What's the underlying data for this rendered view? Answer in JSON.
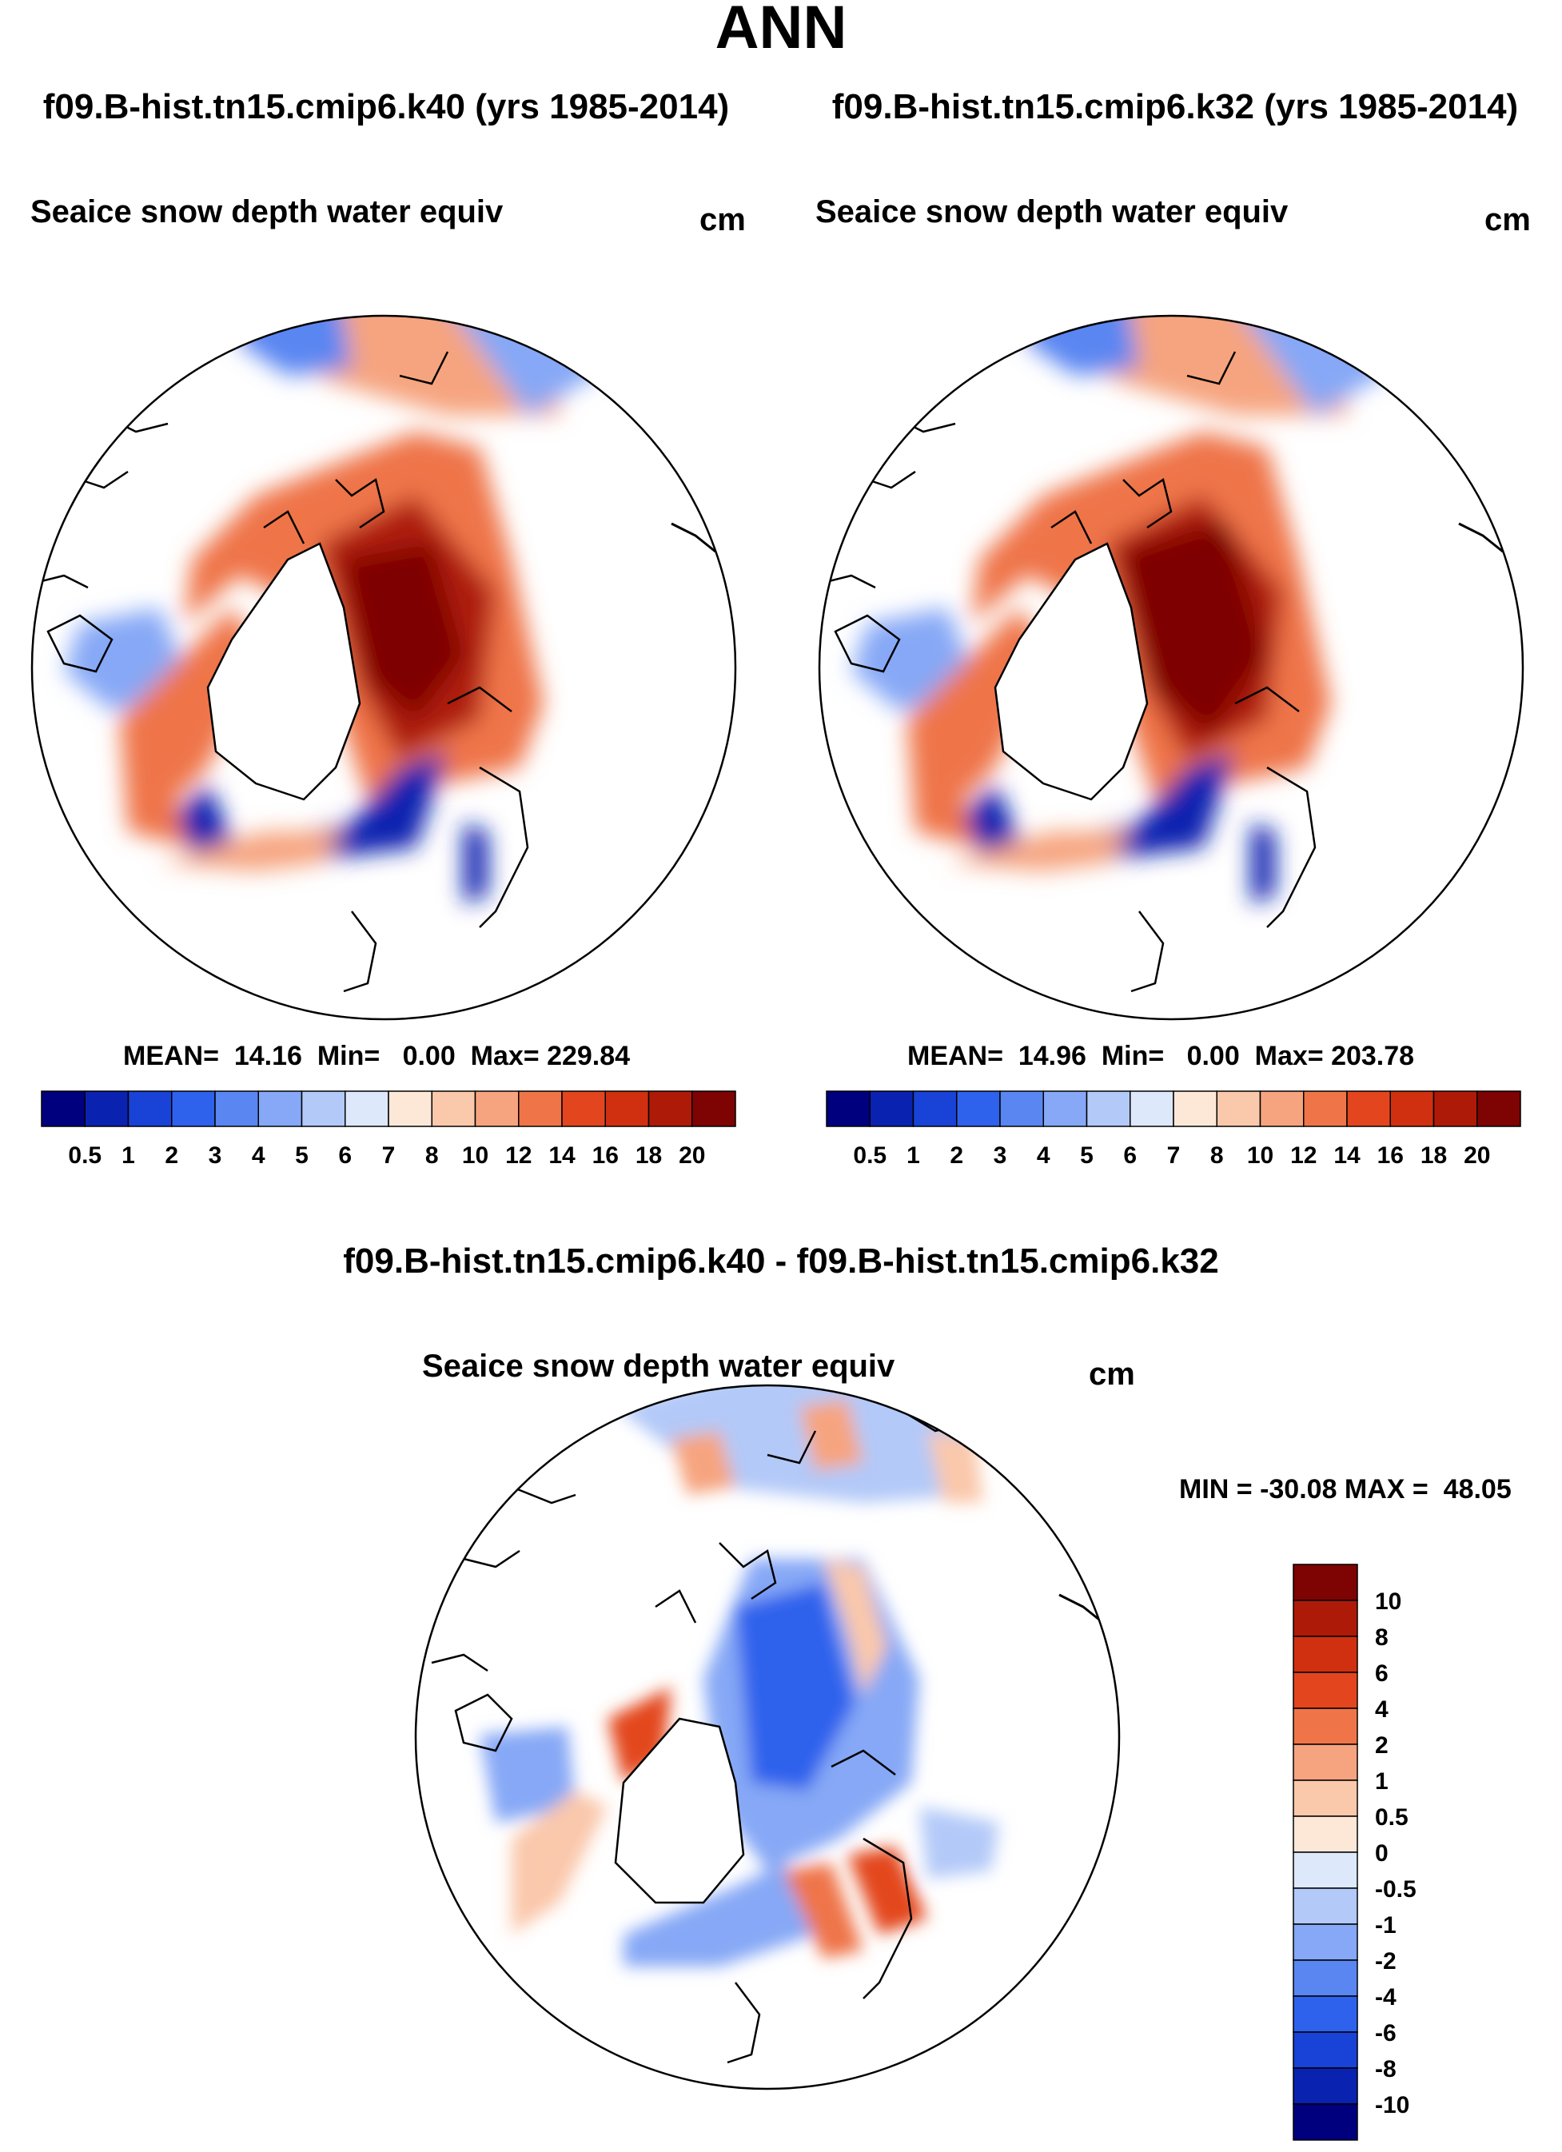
{
  "chart_data": {
    "type": "heatmap",
    "title": "ANN",
    "subtitle_left": "f09.B-hist.tn15.cmip6.k40 (yrs 1985-2014)",
    "subtitle_right": "f09.B-hist.tn15.cmip6.k32 (yrs 1985-2014)",
    "panels": [
      {
        "id": "k40",
        "variable": "Seaice snow depth water equiv",
        "units": "cm",
        "stats_text": "MEAN=  14.16  Min=   0.00  Max= 229.84",
        "mean": 14.16,
        "min": 0.0,
        "max": 229.84,
        "projection": "north polar stereographic"
      },
      {
        "id": "k32",
        "variable": "Seaice snow depth water equiv",
        "units": "cm",
        "stats_text": "MEAN=  14.96  Min=   0.00  Max= 203.78",
        "mean": 14.96,
        "min": 0.0,
        "max": 203.78,
        "projection": "north polar stereographic"
      },
      {
        "id": "diff",
        "title": "f09.B-hist.tn15.cmip6.k40 - f09.B-hist.tn15.cmip6.k32",
        "variable": "Seaice snow depth water equiv",
        "units": "cm",
        "stats_text": "MIN = -30.08 MAX =  48.05",
        "min": -30.08,
        "max": 48.05,
        "projection": "north polar stereographic"
      }
    ],
    "colorbar_absolute": {
      "orientation": "horizontal",
      "labels": [
        "0.5",
        "1",
        "2",
        "3",
        "4",
        "5",
        "6",
        "7",
        "8",
        "10",
        "12",
        "14",
        "16",
        "18",
        "20"
      ],
      "colors": [
        "#00007f",
        "#0a22b0",
        "#1843d6",
        "#2e62ec",
        "#5a86f2",
        "#86a8f6",
        "#b3c9f8",
        "#dde8fb",
        "#fde8d8",
        "#fac8ab",
        "#f6a47f",
        "#ef7548",
        "#e3461f",
        "#d13010",
        "#ae1a08",
        "#7e0303"
      ]
    },
    "colorbar_diff": {
      "orientation": "vertical",
      "labels": [
        "10",
        "8",
        "6",
        "4",
        "2",
        "1",
        "0.5",
        "0",
        "-0.5",
        "-1",
        "-2",
        "-4",
        "-6",
        "-8",
        "-10"
      ],
      "colors": [
        "#7e0303",
        "#ae1a08",
        "#d13010",
        "#e3461f",
        "#ef7548",
        "#f6a47f",
        "#fac8ab",
        "#fde8d8",
        "#dde8fb",
        "#b3c9f8",
        "#86a8f6",
        "#5a86f2",
        "#2e62ec",
        "#1843d6",
        "#0a22b0",
        "#00007f"
      ]
    }
  }
}
